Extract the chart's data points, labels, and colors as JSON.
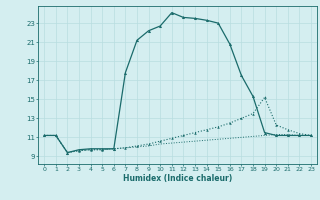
{
  "xlabel": "Humidex (Indice chaleur)",
  "background_color": "#d4eef0",
  "line_color": "#1a6b6b",
  "grid_color": "#b8dde0",
  "xlim": [
    -0.5,
    23.5
  ],
  "ylim": [
    8.2,
    24.8
  ],
  "xticks": [
    0,
    1,
    2,
    3,
    4,
    5,
    6,
    7,
    8,
    9,
    10,
    11,
    12,
    13,
    14,
    15,
    16,
    17,
    18,
    19,
    20,
    21,
    22,
    23
  ],
  "yticks": [
    9,
    11,
    13,
    15,
    17,
    19,
    21,
    23
  ],
  "line1_x": [
    0,
    1,
    2,
    3,
    4,
    5,
    6,
    7,
    8,
    9,
    10,
    11,
    12,
    13,
    14,
    15,
    16,
    17,
    18,
    19,
    20,
    21,
    22,
    23
  ],
  "line1_y": [
    11.2,
    11.2,
    9.4,
    9.7,
    9.8,
    9.8,
    9.8,
    17.8,
    21.2,
    22.2,
    22.7,
    24.1,
    23.6,
    23.5,
    23.3,
    23.0,
    20.8,
    17.5,
    15.3,
    11.5,
    11.2,
    11.2,
    11.2,
    11.2
  ],
  "line2_x": [
    0,
    1,
    2,
    3,
    4,
    5,
    6,
    7,
    8,
    9,
    10,
    11,
    12,
    13,
    14,
    15,
    16,
    17,
    18,
    19,
    20,
    21,
    22,
    23
  ],
  "line2_y": [
    11.2,
    11.2,
    9.4,
    9.6,
    9.7,
    9.7,
    9.8,
    9.9,
    10.1,
    10.3,
    10.6,
    10.9,
    11.2,
    11.5,
    11.8,
    12.1,
    12.5,
    13.0,
    13.5,
    15.2,
    12.3,
    11.8,
    11.4,
    11.2
  ],
  "line3_x": [
    0,
    1,
    2,
    3,
    4,
    5,
    6,
    7,
    8,
    9,
    10,
    11,
    12,
    13,
    14,
    15,
    16,
    17,
    18,
    19,
    20,
    21,
    22,
    23
  ],
  "line3_y": [
    11.2,
    11.2,
    9.4,
    9.6,
    9.7,
    9.7,
    9.8,
    9.9,
    10.0,
    10.1,
    10.3,
    10.4,
    10.5,
    10.6,
    10.7,
    10.8,
    10.9,
    11.0,
    11.1,
    11.2,
    11.3,
    11.3,
    11.2,
    11.2
  ]
}
